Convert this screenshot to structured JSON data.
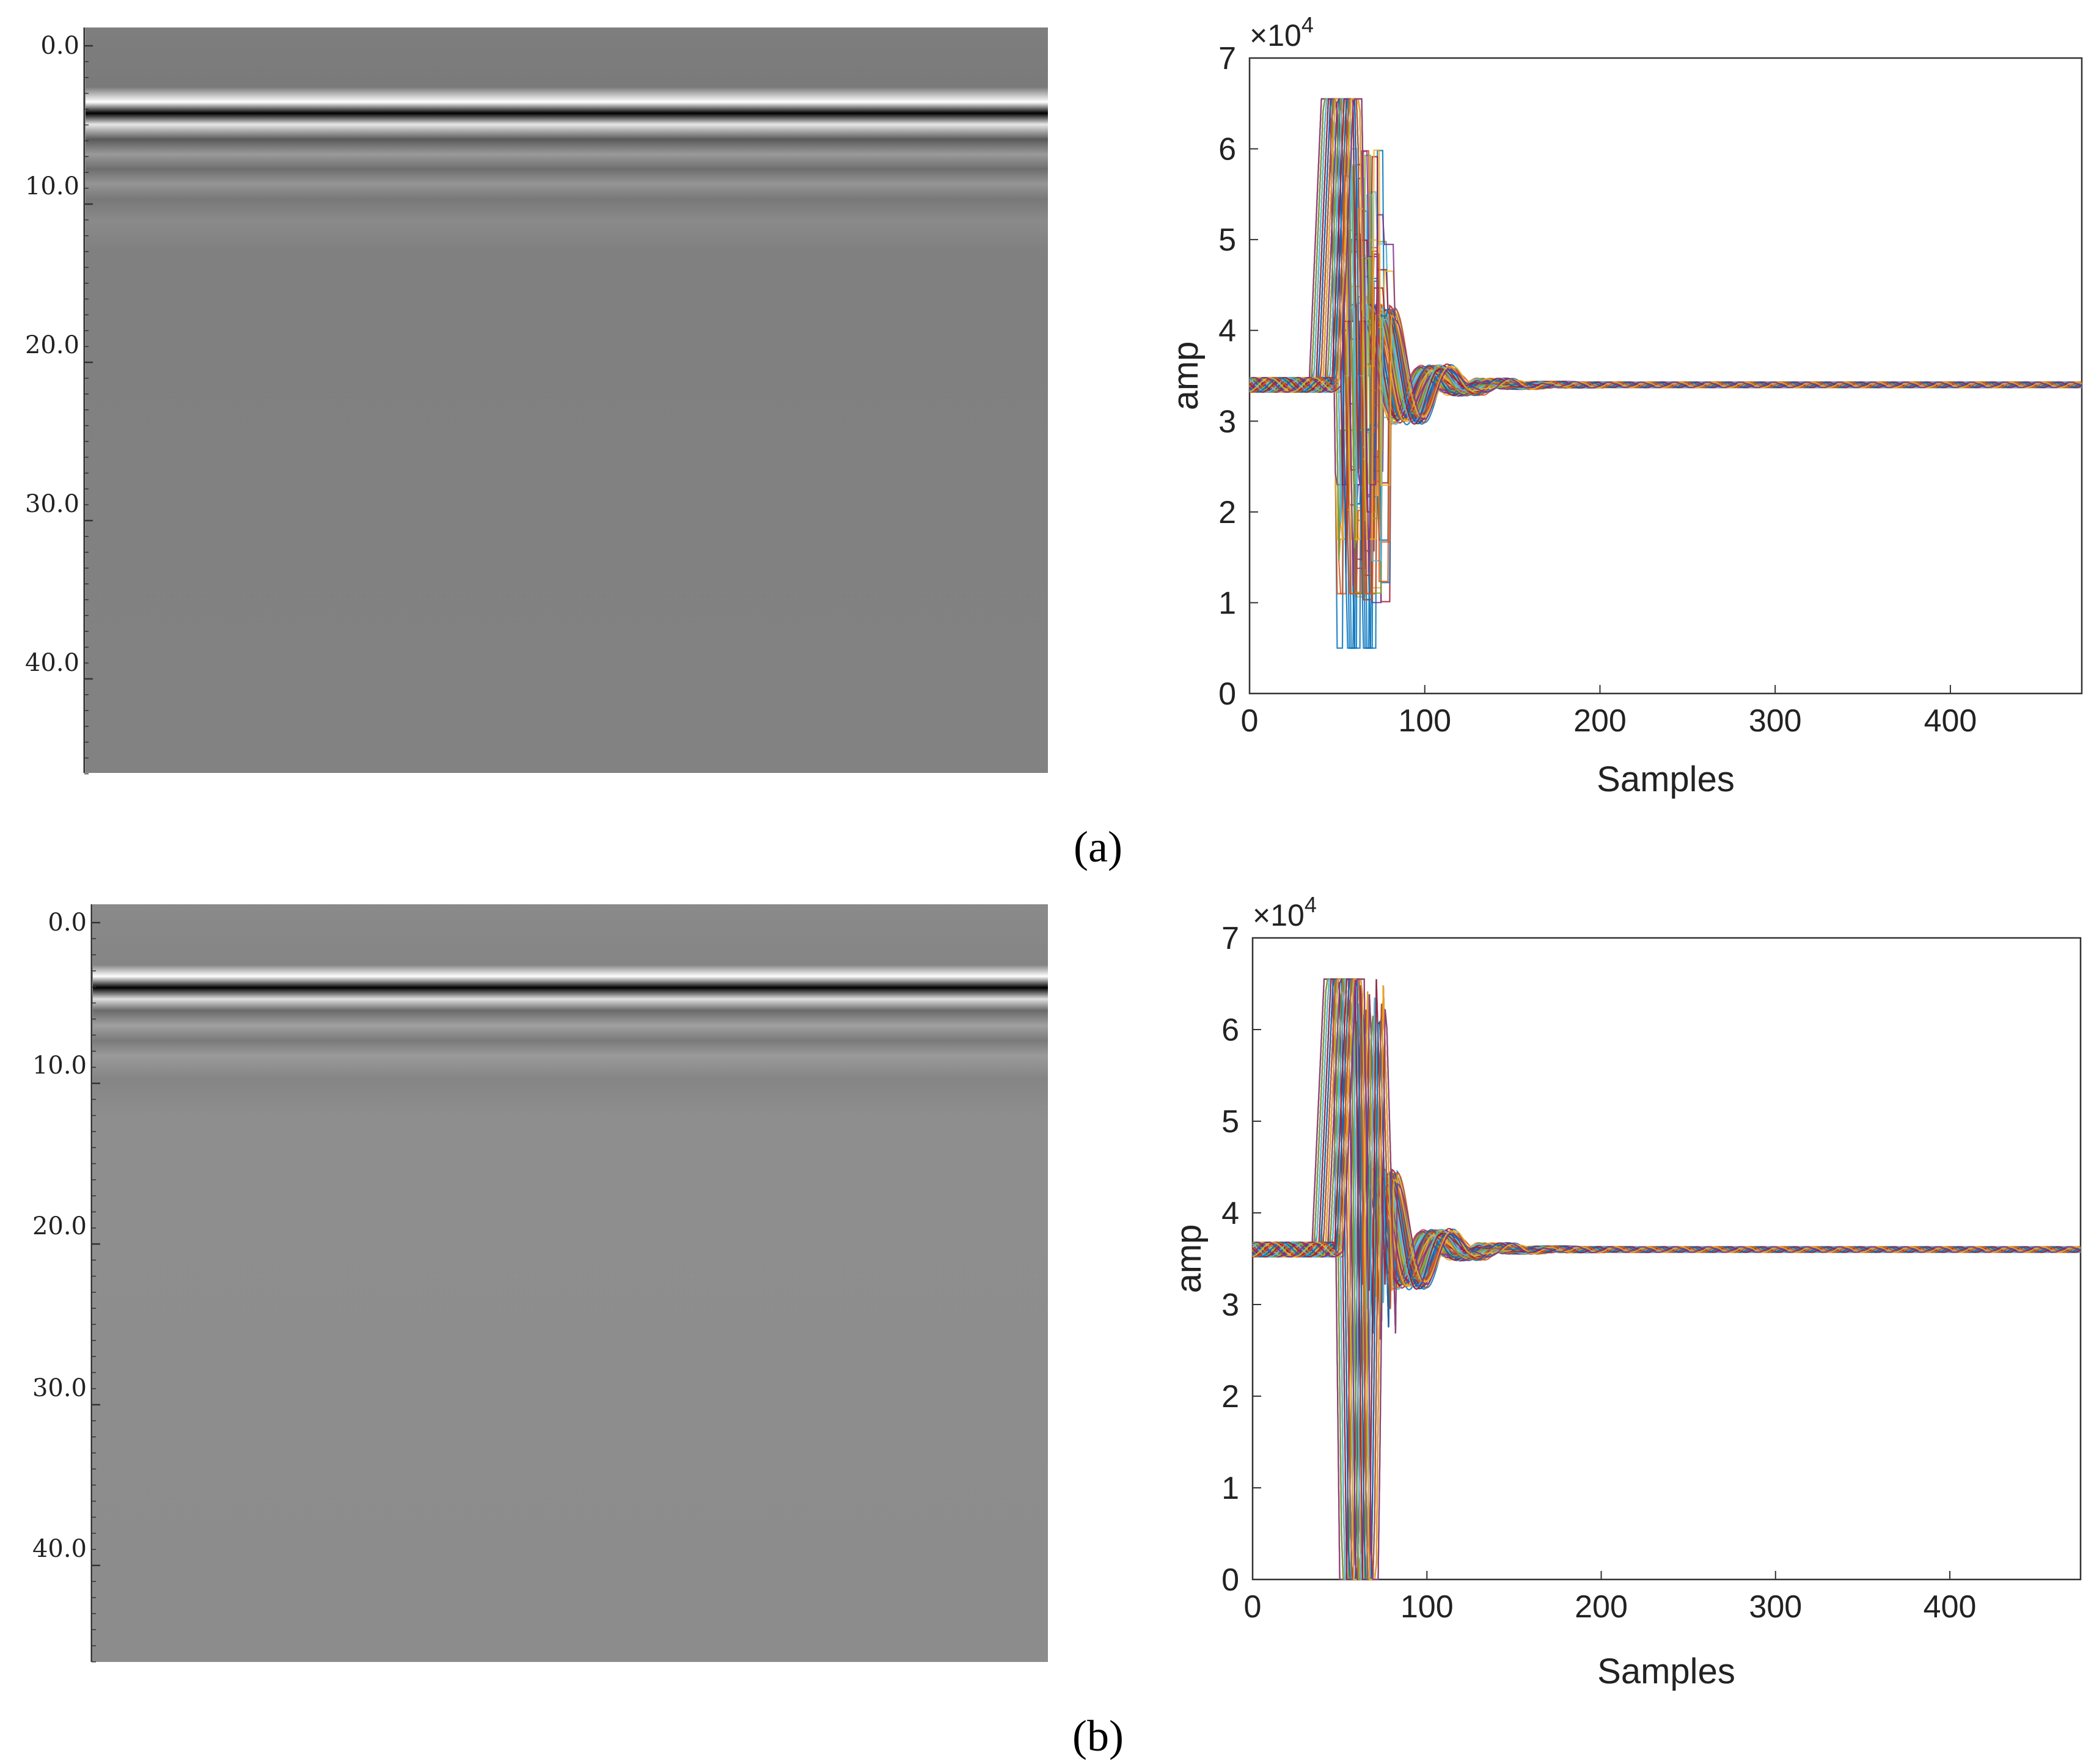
{
  "panel_labels": [
    "(a)",
    "(b)"
  ],
  "chart_data": [
    {
      "type": "heatmap",
      "panel": "a",
      "ylabel": "",
      "y_ticks": [
        "0.0",
        "10.0",
        "20.0",
        "30.0",
        "40.0"
      ],
      "ylim": [
        0,
        46
      ],
      "reflection_depth": 5.2
    },
    {
      "type": "line",
      "panel": "a",
      "xlabel": "Samples",
      "ylabel": "amp",
      "y_exponent_label": "×10",
      "y_exponent_power": "4",
      "xlim": [
        0,
        475
      ],
      "ylim": [
        0,
        7
      ],
      "x_ticks": [
        "0",
        "100",
        "200",
        "300",
        "400"
      ],
      "y_ticks": [
        "0",
        "1",
        "2",
        "3",
        "4",
        "5",
        "6",
        "7"
      ],
      "baseline": 3.4,
      "series_count": 60
    },
    {
      "type": "heatmap",
      "panel": "b",
      "ylabel": "",
      "y_ticks": [
        "0.0",
        "10.0",
        "20.0",
        "30.0",
        "40.0"
      ],
      "ylim": [
        0,
        46
      ],
      "reflection_depth": 4.7
    },
    {
      "type": "line",
      "panel": "b",
      "xlabel": "Samples",
      "ylabel": "amp",
      "y_exponent_label": "×10",
      "y_exponent_power": "4",
      "xlim": [
        0,
        475
      ],
      "ylim": [
        0,
        7
      ],
      "x_ticks": [
        "0",
        "100",
        "200",
        "300",
        "400"
      ],
      "y_ticks": [
        "0",
        "1",
        "2",
        "3",
        "4",
        "5",
        "6",
        "7"
      ],
      "baseline": 3.6,
      "series_count": 60
    }
  ]
}
